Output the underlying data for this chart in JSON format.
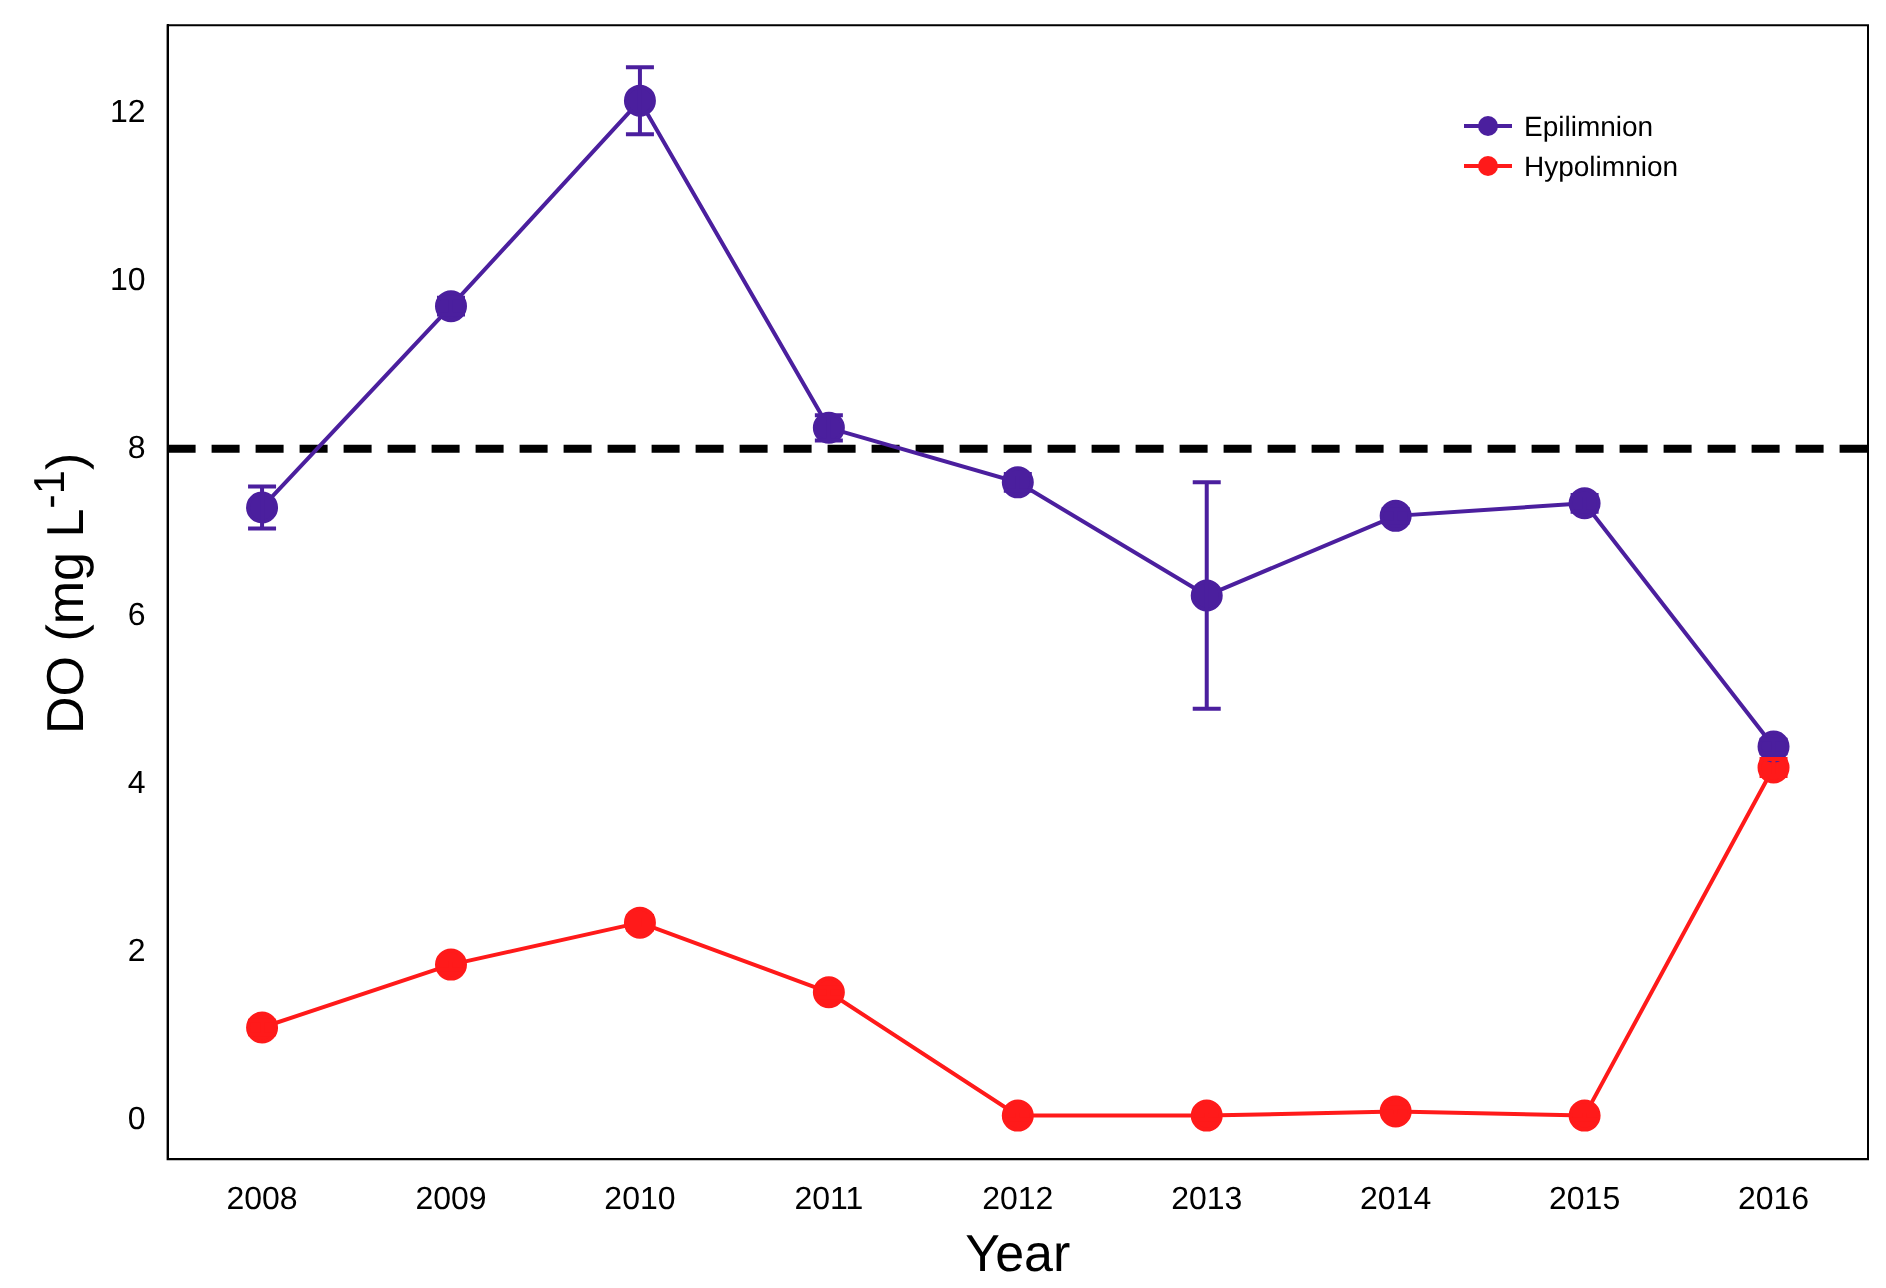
{
  "chart_data": {
    "type": "line",
    "xlabel": "Year",
    "ylabel": "DO (mg L$^{-1}$)",
    "categories": [
      "2008",
      "2009",
      "2010",
      "2011",
      "2012",
      "2013",
      "2014",
      "2015",
      "2016"
    ],
    "series": [
      {
        "name": "Epilimnion",
        "color": "#4b1f9e",
        "values": [
          7.3,
          9.7,
          12.15,
          8.25,
          7.6,
          6.25,
          7.2,
          7.35,
          4.45
        ],
        "errors": [
          0.25,
          0.1,
          0.4,
          0.15,
          0.1,
          1.35,
          0.08,
          0.1,
          0.08
        ]
      },
      {
        "name": "Hypolimnion",
        "color": "#ff1a1a",
        "values": [
          1.1,
          1.85,
          2.35,
          1.52,
          0.05,
          0.05,
          0.1,
          0.05,
          4.2
        ],
        "errors": [
          0.08,
          0.06,
          0.08,
          0.06,
          0.05,
          0.05,
          0.05,
          0.05,
          0.1
        ]
      }
    ],
    "ylim": [
      -0.47,
      13.05
    ],
    "yticks": [
      0,
      2,
      4,
      6,
      8,
      10,
      12
    ],
    "ref_lines": [
      {
        "axis": "y",
        "value": 8,
        "color": "#000000",
        "line_style": "dashed"
      }
    ],
    "legend": "top right",
    "marker": "circle",
    "line_style": "solid",
    "grid": false
  }
}
